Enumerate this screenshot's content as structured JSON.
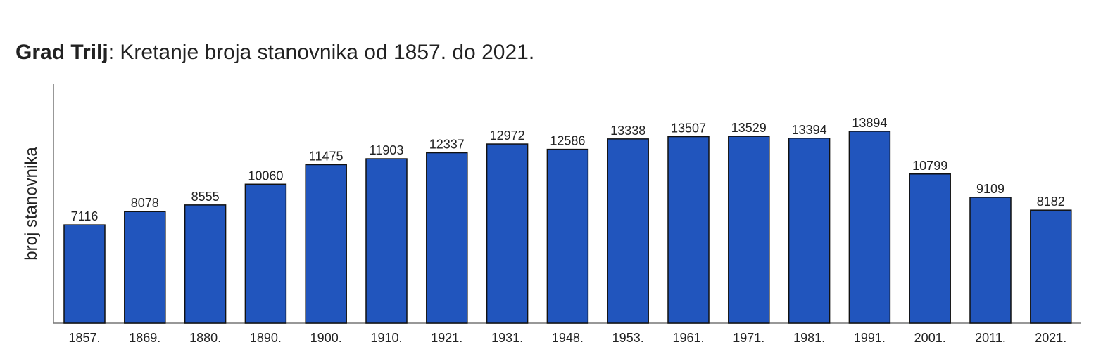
{
  "chart_data": {
    "type": "bar",
    "title_bold": "Grad Trilj",
    "title_rest": ": Kretanje broja stanovnika od 1857. do 2021.",
    "xlabel": "",
    "ylabel": "broj stanovnika",
    "categories": [
      "1857.",
      "1869.",
      "1880.",
      "1890.",
      "1900.",
      "1910.",
      "1921.",
      "1931.",
      "1948.",
      "1953.",
      "1961.",
      "1971.",
      "1981.",
      "1991.",
      "2001.",
      "2011.",
      "2021."
    ],
    "values": [
      7116,
      8078,
      8555,
      10060,
      11475,
      11903,
      12337,
      12972,
      12586,
      13338,
      13507,
      13529,
      13394,
      13894,
      10799,
      9109,
      8182
    ],
    "ylim": [
      0,
      17350
    ],
    "grid": false,
    "legend": "none",
    "bar_color": "#2155BD",
    "edge_color": "#111111"
  }
}
